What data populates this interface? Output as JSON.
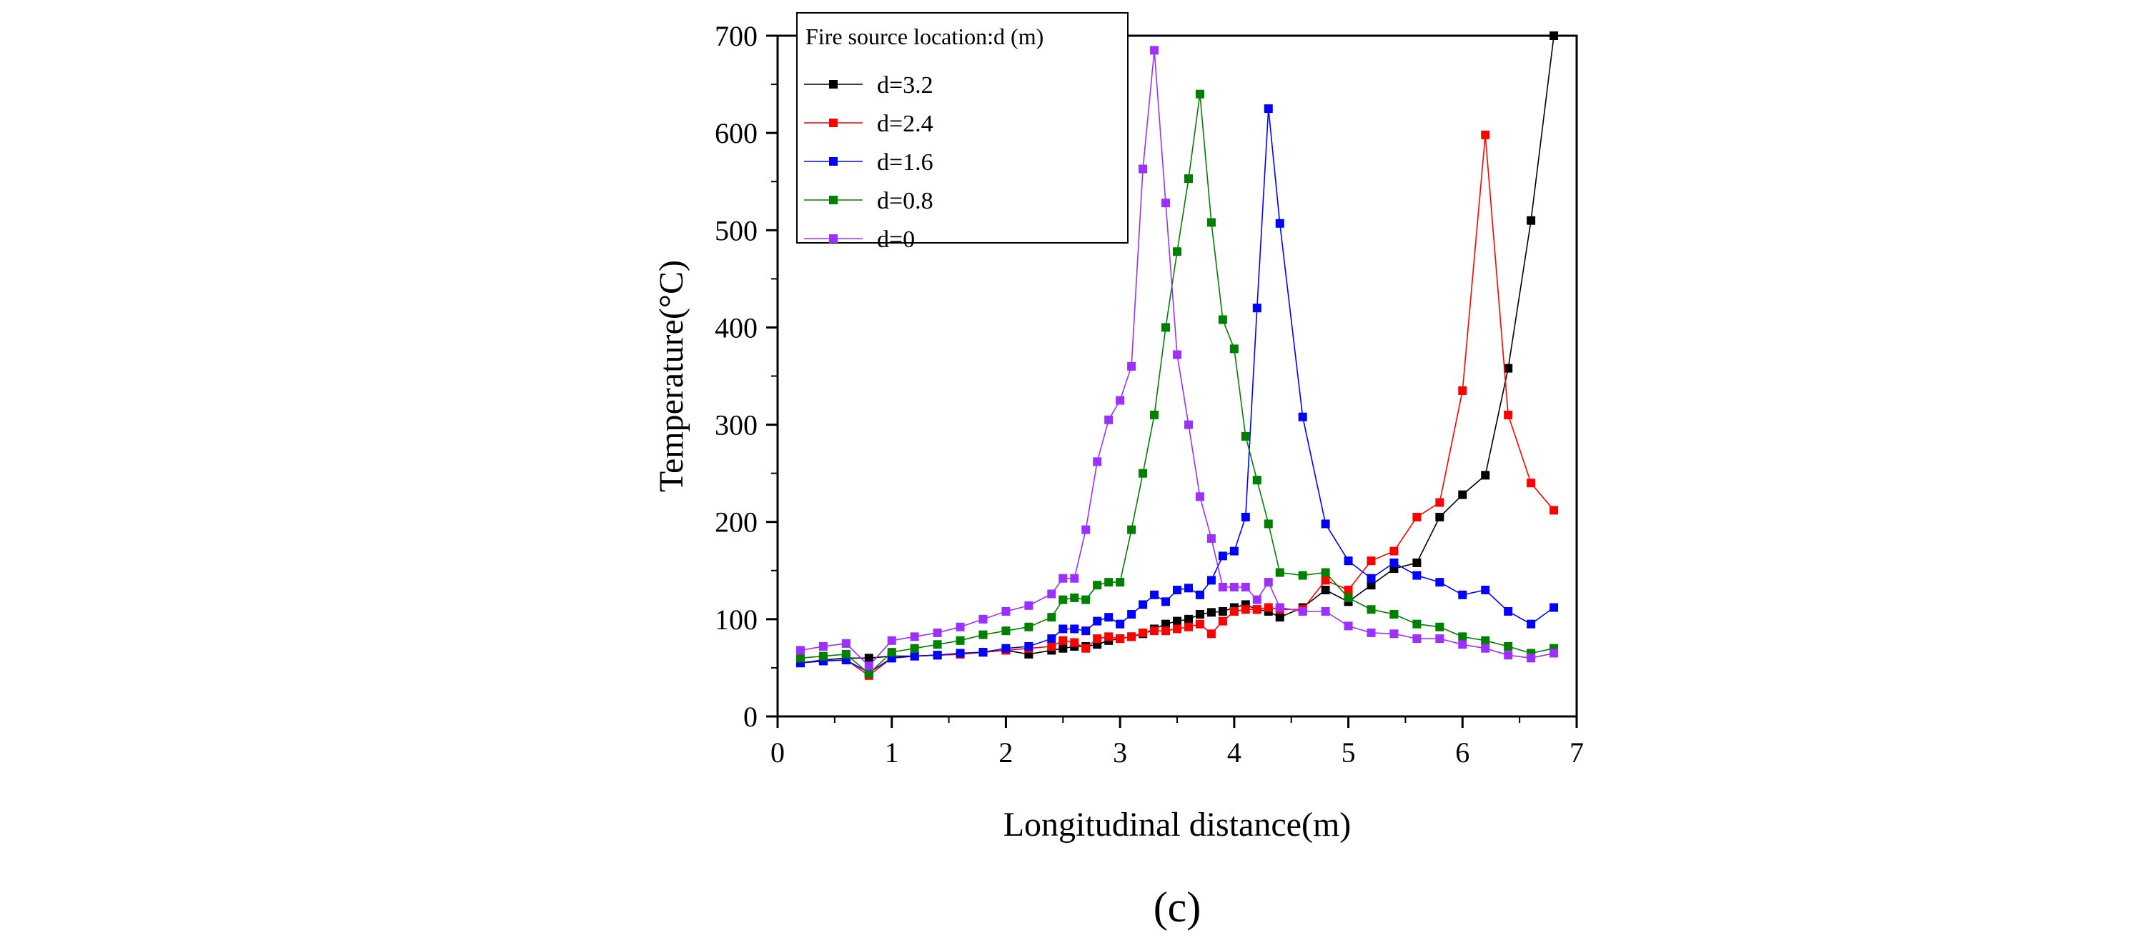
{
  "chart_data": {
    "type": "line",
    "xlabel": "Longitudinal distance(m)",
    "ylabel": "Temperature(°C)",
    "xlim": [
      0,
      7
    ],
    "ylim": [
      0,
      700
    ],
    "xticks": [
      0,
      1,
      2,
      3,
      4,
      5,
      6,
      7
    ],
    "yticks": [
      0,
      100,
      200,
      300,
      400,
      500,
      600,
      700
    ],
    "grid": false,
    "legend_title": "Fire source location:d (m)",
    "legend_position": "top-left",
    "panel_label": "(c)",
    "marker": "square",
    "series": [
      {
        "name": "d=3.2",
        "color": "#000000",
        "x": [
          0.2,
          0.4,
          0.6,
          0.8,
          1.0,
          1.2,
          1.4,
          1.6,
          1.8,
          2.0,
          2.2,
          2.4,
          2.5,
          2.6,
          2.7,
          2.8,
          2.9,
          3.0,
          3.1,
          3.2,
          3.3,
          3.4,
          3.5,
          3.6,
          3.7,
          3.8,
          3.9,
          4.0,
          4.1,
          4.2,
          4.3,
          4.4,
          4.6,
          4.8,
          5.0,
          5.2,
          5.4,
          5.6,
          5.8,
          6.0,
          6.2,
          6.4,
          6.6,
          6.8
        ],
        "y": [
          55,
          58,
          60,
          60,
          62,
          62,
          63,
          64,
          66,
          68,
          64,
          68,
          70,
          72,
          72,
          74,
          78,
          80,
          82,
          85,
          90,
          95,
          98,
          100,
          105,
          107,
          108,
          112,
          115,
          110,
          108,
          102,
          112,
          130,
          118,
          135,
          152,
          158,
          205,
          228,
          248,
          358,
          510,
          700
        ]
      },
      {
        "name": "d=2.4",
        "color": "#ff0000",
        "x": [
          0.2,
          0.4,
          0.6,
          0.8,
          1.0,
          1.2,
          1.4,
          1.6,
          1.8,
          2.0,
          2.2,
          2.4,
          2.5,
          2.6,
          2.7,
          2.8,
          2.9,
          3.0,
          3.1,
          3.2,
          3.3,
          3.4,
          3.5,
          3.6,
          3.7,
          3.8,
          3.9,
          4.0,
          4.1,
          4.2,
          4.3,
          4.4,
          4.6,
          4.8,
          5.0,
          5.2,
          5.4,
          5.6,
          5.8,
          6.0,
          6.2,
          6.4,
          6.6,
          6.8
        ],
        "y": [
          55,
          57,
          58,
          42,
          60,
          62,
          63,
          64,
          66,
          68,
          70,
          72,
          78,
          76,
          70,
          80,
          82,
          80,
          82,
          86,
          88,
          88,
          90,
          92,
          95,
          85,
          98,
          108,
          110,
          110,
          112,
          110,
          110,
          140,
          130,
          160,
          170,
          205,
          220,
          335,
          598,
          310,
          240,
          212
        ]
      },
      {
        "name": "d=1.6",
        "color": "#0000ff",
        "x": [
          0.2,
          0.4,
          0.6,
          0.8,
          1.0,
          1.2,
          1.4,
          1.6,
          1.8,
          2.0,
          2.2,
          2.4,
          2.5,
          2.6,
          2.7,
          2.8,
          2.9,
          3.0,
          3.1,
          3.2,
          3.3,
          3.4,
          3.5,
          3.6,
          3.7,
          3.8,
          3.9,
          4.0,
          4.1,
          4.2,
          4.3,
          4.4,
          4.6,
          4.8,
          5.0,
          5.2,
          5.4,
          5.6,
          5.8,
          6.0,
          6.2,
          6.4,
          6.6,
          6.8
        ],
        "y": [
          55,
          57,
          58,
          45,
          60,
          62,
          63,
          65,
          66,
          70,
          72,
          80,
          90,
          90,
          88,
          98,
          102,
          95,
          105,
          115,
          125,
          118,
          130,
          132,
          125,
          140,
          165,
          170,
          205,
          420,
          625,
          507,
          308,
          198,
          160,
          142,
          158,
          145,
          138,
          125,
          130,
          108,
          95,
          112
        ]
      },
      {
        "name": "d=0.8",
        "color": "#008000",
        "x": [
          0.2,
          0.4,
          0.6,
          0.8,
          1.0,
          1.2,
          1.4,
          1.6,
          1.8,
          2.0,
          2.2,
          2.4,
          2.5,
          2.6,
          2.7,
          2.8,
          2.9,
          3.0,
          3.1,
          3.2,
          3.3,
          3.4,
          3.5,
          3.6,
          3.7,
          3.8,
          3.9,
          4.0,
          4.1,
          4.2,
          4.3,
          4.4,
          4.6,
          4.8,
          5.0,
          5.2,
          5.4,
          5.6,
          5.8,
          6.0,
          6.2,
          6.4,
          6.6,
          6.8
        ],
        "y": [
          60,
          62,
          64,
          44,
          66,
          70,
          74,
          78,
          84,
          88,
          92,
          102,
          120,
          122,
          120,
          135,
          138,
          138,
          192,
          250,
          310,
          400,
          478,
          553,
          640,
          508,
          408,
          378,
          288,
          243,
          198,
          148,
          145,
          148,
          122,
          110,
          105,
          95,
          92,
          82,
          78,
          72,
          65,
          70
        ]
      },
      {
        "name": "d=0",
        "color": "#9b30ff",
        "x": [
          0.2,
          0.4,
          0.6,
          0.8,
          1.0,
          1.2,
          1.4,
          1.6,
          1.8,
          2.0,
          2.2,
          2.4,
          2.5,
          2.6,
          2.7,
          2.8,
          2.9,
          3.0,
          3.1,
          3.2,
          3.3,
          3.4,
          3.5,
          3.6,
          3.7,
          3.8,
          3.9,
          4.0,
          4.1,
          4.2,
          4.3,
          4.4,
          4.6,
          4.8,
          5.0,
          5.2,
          5.4,
          5.6,
          5.8,
          6.0,
          6.2,
          6.4,
          6.6,
          6.8
        ],
        "y": [
          68,
          72,
          75,
          52,
          78,
          82,
          86,
          92,
          100,
          108,
          114,
          126,
          142,
          142,
          192,
          262,
          305,
          325,
          360,
          563,
          685,
          528,
          372,
          300,
          226,
          183,
          133,
          133,
          133,
          120,
          138,
          112,
          108,
          108,
          93,
          86,
          85,
          80,
          80,
          74,
          70,
          63,
          60,
          65
        ]
      }
    ]
  }
}
